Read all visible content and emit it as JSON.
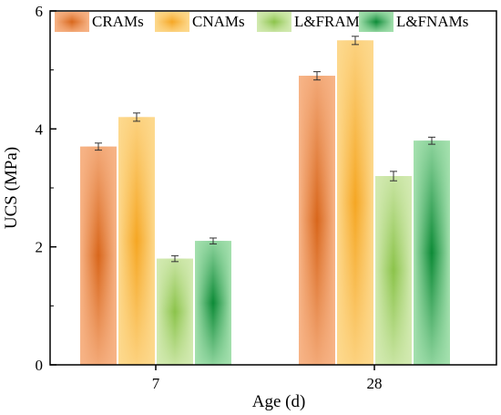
{
  "chart_data": {
    "type": "bar",
    "xlabel": "Age (d)",
    "ylabel": "UCS (MPa)",
    "categories": [
      "7",
      "28"
    ],
    "ylim": [
      0,
      6
    ],
    "yticks": [
      "0",
      "2",
      "4",
      "6"
    ],
    "legend_position": "top",
    "series": [
      {
        "name": "CRAMs",
        "values": [
          3.7,
          4.9
        ],
        "errors": [
          0.06,
          0.07
        ],
        "color_edge": "#f7b487",
        "color_center": "#d8661b"
      },
      {
        "name": "CNAMs",
        "values": [
          4.2,
          5.5
        ],
        "errors": [
          0.07,
          0.07
        ],
        "color_edge": "#fdd98e",
        "color_center": "#f5a623"
      },
      {
        "name": "L&FRAMs",
        "values": [
          1.8,
          3.2
        ],
        "errors": [
          0.05,
          0.08
        ],
        "color_edge": "#d3eab2",
        "color_center": "#8bc34a"
      },
      {
        "name": "L&FNAMs",
        "values": [
          2.1,
          3.8
        ],
        "errors": [
          0.05,
          0.06
        ],
        "color_edge": "#a4e0ae",
        "color_center": "#0c8a36"
      }
    ]
  }
}
